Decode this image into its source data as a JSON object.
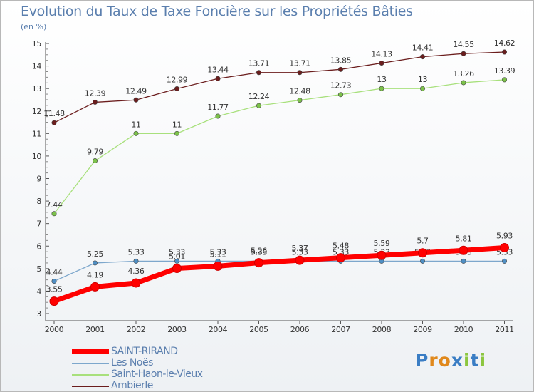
{
  "chart_data": {
    "type": "line",
    "title": "Evolution du Taux de Taxe Foncière sur les Propriétés Bâties",
    "subtitle": "(en %)",
    "xlabel": "",
    "ylabel": "",
    "categories": [
      "2000",
      "2001",
      "2002",
      "2003",
      "2004",
      "2005",
      "2006",
      "2007",
      "2008",
      "2009",
      "2010",
      "2011"
    ],
    "ylim": [
      3,
      15
    ],
    "yticks": [
      "3",
      "4",
      "5",
      "6",
      "7",
      "8",
      "9",
      "10",
      "11",
      "12",
      "13",
      "14",
      "15"
    ],
    "grid": false,
    "legend_position": "bottom-left",
    "series": [
      {
        "name": "Ambierle",
        "color": "#6b1d1d",
        "marker_color": "#6b1d1d",
        "values": [
          11.48,
          12.39,
          12.49,
          12.99,
          13.44,
          13.71,
          13.71,
          13.85,
          14.13,
          14.41,
          14.55,
          14.62
        ],
        "labels": [
          "11.48",
          "12.39",
          "12.49",
          "12.99",
          "13.44",
          "13.71",
          "13.71",
          "13.85",
          "14.13",
          "14.41",
          "14.55",
          "14.62"
        ]
      },
      {
        "name": "Saint-Haon-le-Vieux",
        "color": "#a8e07c",
        "marker_color": "#7cc24a",
        "values": [
          7.44,
          9.79,
          11,
          11,
          11.77,
          12.24,
          12.48,
          12.73,
          13,
          13,
          13.26,
          13.39
        ],
        "labels": [
          "7.44",
          "9.79",
          "11",
          "11",
          "11.77",
          "12.24",
          "12.48",
          "12.73",
          "13",
          "13",
          "13.26",
          "13.39"
        ]
      },
      {
        "name": "Les Noës",
        "color": "#7da7cc",
        "marker_color": "#4f8fc4",
        "values": [
          4.44,
          5.25,
          5.33,
          5.33,
          5.33,
          5.33,
          5.33,
          5.33,
          5.33,
          5.33,
          5.33,
          5.33
        ],
        "labels": [
          "4.44",
          "5.25",
          "5.33",
          "5.33",
          "5.33",
          "5.33",
          "5.33",
          "5.33",
          "5.33",
          "5.33",
          "5.33",
          "5.33"
        ]
      },
      {
        "name": "SAINT-RIRAND",
        "color": "#ff0000",
        "marker_color": "#ff0000",
        "values": [
          3.55,
          4.19,
          4.36,
          5.01,
          5.11,
          5.26,
          5.37,
          5.48,
          5.59,
          5.7,
          5.81,
          5.93
        ],
        "labels": [
          "3.55",
          "4.19",
          "4.36",
          "5.01",
          "5.11",
          "5.26",
          "5.37",
          "5.48",
          "5.59",
          "5.7",
          "5.81",
          "5.93"
        ]
      }
    ]
  },
  "legend": {
    "items": [
      {
        "label": "SAINT-RIRAND",
        "color": "#ff0000"
      },
      {
        "label": "Les Noës",
        "color": "#7da7cc"
      },
      {
        "label": "Saint-Haon-le-Vieux",
        "color": "#a8e07c"
      },
      {
        "label": "Ambierle",
        "color": "#6b1d1d"
      }
    ]
  },
  "logo": {
    "letters": [
      "P",
      "r",
      "o",
      "x",
      "i",
      "t",
      "i"
    ],
    "colors": [
      "#3a7dc4",
      "#e0881c",
      "#e0881c",
      "#3a7dc4",
      "#8cc63f",
      "#3a7dc4",
      "#8cc63f"
    ]
  }
}
